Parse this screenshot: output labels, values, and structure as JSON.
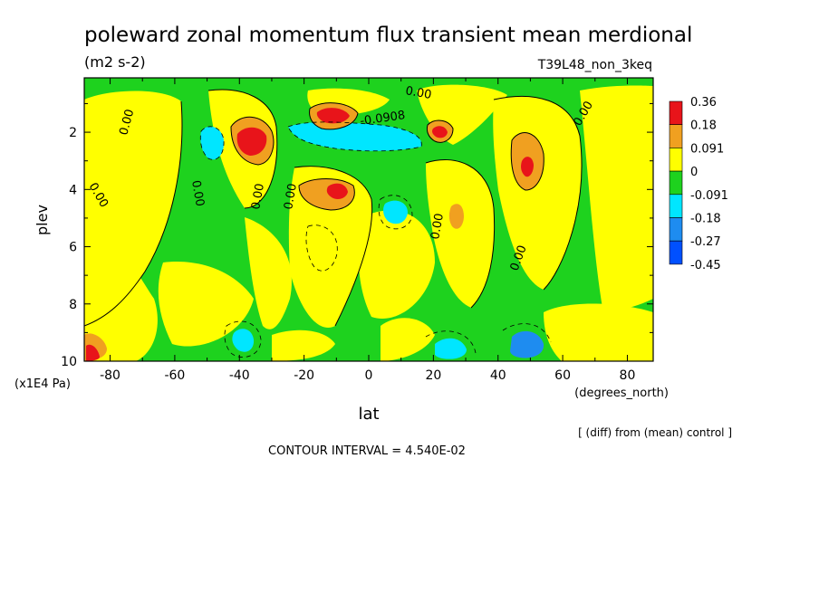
{
  "chart_data": {
    "type": "heatmap",
    "title": "poleward zonal momentum flux transient mean merdional",
    "subtitle": "(m2 s-2)",
    "run_label": "T39L48_non_3keq",
    "xlabel": "lat",
    "x_units": "(degrees_north)",
    "ylabel": "plev",
    "y_units": "(x1E4 Pa)",
    "note": "[ (diff) from (mean) control ]",
    "contour_interval_text": "CONTOUR INTERVAL = 4.540E-02",
    "x_ticks": [
      -80,
      -60,
      -40,
      -20,
      0,
      20,
      40,
      60,
      80
    ],
    "x_tick_labels": [
      "-80",
      "-60",
      "-40",
      "-20",
      "0",
      "20",
      "40",
      "60",
      "80"
    ],
    "y_ticks": [
      2,
      4,
      6,
      8,
      10
    ],
    "y_tick_labels": [
      "2",
      "4",
      "6",
      "8",
      "10"
    ],
    "xlim": [
      -88,
      88
    ],
    "ylim": [
      10,
      0.1
    ],
    "legend": {
      "levels": [
        "0.36",
        "0.18",
        "0.091",
        "0",
        "-0.091",
        "-0.18",
        "-0.27",
        "-0.45"
      ],
      "colors": [
        "#e8141a",
        "#f0a020",
        "#ffff00",
        "#1ed21e",
        "#00e6ff",
        "#1e8cf0",
        "#0050ff"
      ]
    },
    "contour_labels": [
      "0.00",
      "0.00",
      "0.00",
      "0.00",
      "0.00",
      "0.00",
      "0.00",
      "0.00",
      "-0.0908",
      "0.00"
    ],
    "features": [
      {
        "lat": -35,
        "plev": 2.3,
        "value": 0.36,
        "sign": "positive"
      },
      {
        "lat": -12,
        "plev": 1.3,
        "value": 0.36,
        "sign": "positive"
      },
      {
        "lat": -10,
        "plev": 4.0,
        "value": 0.36,
        "sign": "positive"
      },
      {
        "lat": 22,
        "plev": 2.0,
        "value": 0.36,
        "sign": "positive"
      },
      {
        "lat": 50,
        "plev": 3.0,
        "value": 0.36,
        "sign": "positive"
      },
      {
        "lat": 27,
        "plev": 4.8,
        "value": 0.091,
        "sign": "positive"
      },
      {
        "lat": -85,
        "plev": 9.8,
        "value": 0.36,
        "sign": "positive"
      },
      {
        "lat": -47,
        "plev": 2.2,
        "value": -0.18,
        "sign": "negative"
      },
      {
        "lat": 0,
        "plev": 2.2,
        "value": -0.18,
        "sign": "negative"
      },
      {
        "lat": 8,
        "plev": 4.8,
        "value": -0.18,
        "sign": "negative"
      },
      {
        "lat": -40,
        "plev": 9.4,
        "value": -0.18,
        "sign": "negative"
      },
      {
        "lat": 27,
        "plev": 9.6,
        "value": -0.18,
        "sign": "negative"
      },
      {
        "lat": 50,
        "plev": 9.6,
        "value": -0.27,
        "sign": "negative"
      }
    ]
  }
}
